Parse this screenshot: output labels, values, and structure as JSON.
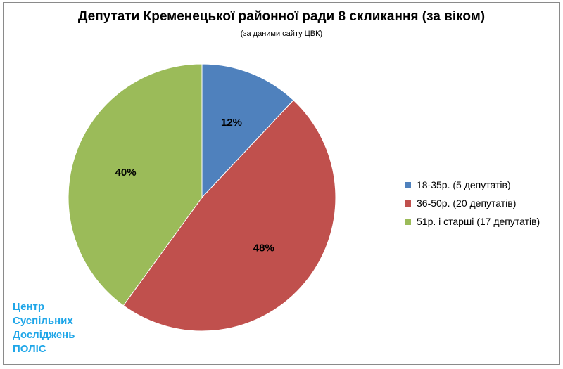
{
  "chart_data": {
    "type": "pie",
    "title": "Депутати Кременецької районної ради 8 скликання (за віком)",
    "subtitle": "(за даними сайту ЦВК)",
    "slices": [
      {
        "label": "18-35р. (5 депутатів)",
        "value": 12,
        "data_label": "12%",
        "color": "#4f81bd"
      },
      {
        "label": "36-50р. (20 депутатів)",
        "value": 48,
        "data_label": "48%",
        "color": "#c0504d"
      },
      {
        "label": "51р. і старші (17 депутатів)",
        "value": 40,
        "data_label": "40%",
        "color": "#9bbb59"
      }
    ],
    "legend_position": "right"
  },
  "branding": {
    "line1": "Центр",
    "line2": "Суспільних",
    "line3": "Досліджень",
    "line4": "ПОЛІС",
    "color": "#1fa6e8"
  }
}
